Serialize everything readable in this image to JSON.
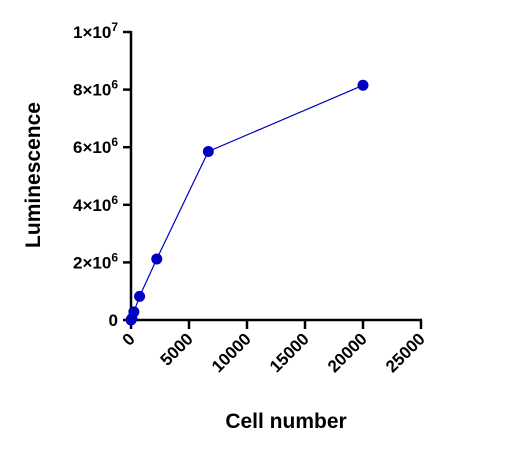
{
  "chart_data": {
    "type": "line",
    "title": "",
    "xlabel": "Cell number",
    "ylabel": "Luminescence",
    "xlim": [
      0,
      25000
    ],
    "ylim": [
      0,
      10000000
    ],
    "x_ticks": [
      {
        "value": 0,
        "label": "0"
      },
      {
        "value": 5000,
        "label": "5000"
      },
      {
        "value": 10000,
        "label": "10000"
      },
      {
        "value": 15000,
        "label": "15000"
      },
      {
        "value": 20000,
        "label": "20000"
      },
      {
        "value": 25000,
        "label": "25000"
      }
    ],
    "y_ticks": [
      {
        "value": 0,
        "label": "0"
      },
      {
        "value": 2000000,
        "label": "2×10",
        "exp": "6"
      },
      {
        "value": 4000000,
        "label": "4×10",
        "exp": "6"
      },
      {
        "value": 6000000,
        "label": "6×10",
        "exp": "6"
      },
      {
        "value": 8000000,
        "label": "8×10",
        "exp": "6"
      },
      {
        "value": 10000000,
        "label": "1×10",
        "exp": "7"
      }
    ],
    "grid": false,
    "series": [
      {
        "color": "#0000c0",
        "x": [
          0,
          82,
          247,
          741,
          2222,
          6667,
          20000
        ],
        "y": [
          0,
          50000,
          280000,
          820000,
          2120000,
          5850000,
          8150000
        ]
      }
    ]
  }
}
